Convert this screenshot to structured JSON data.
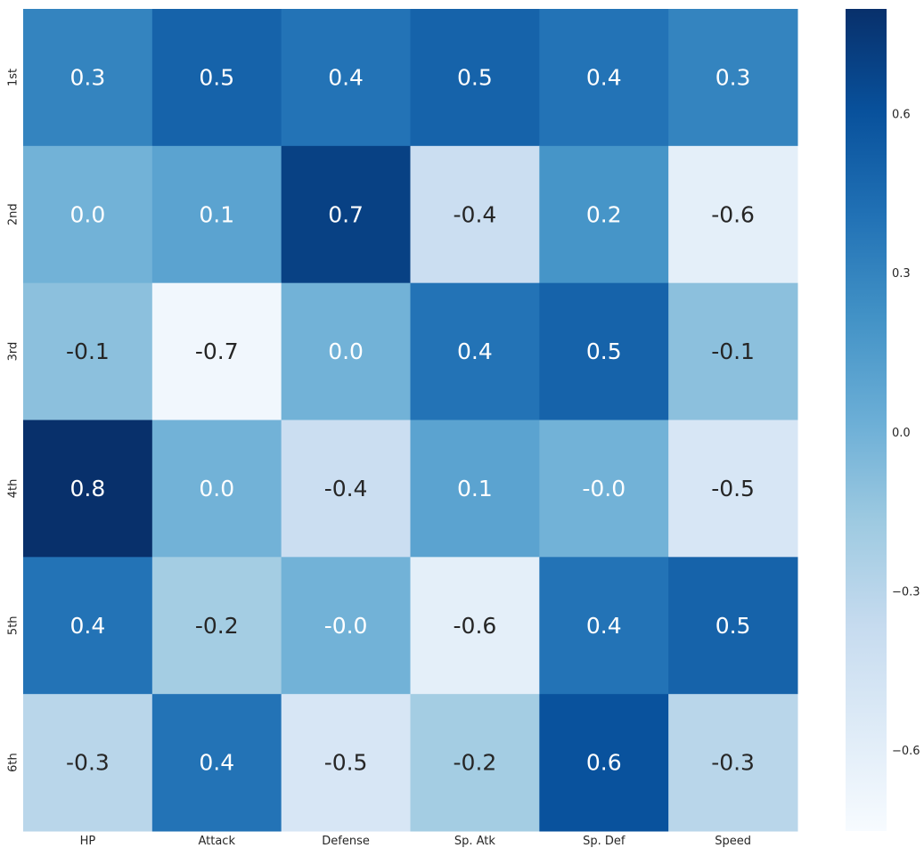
{
  "chart_data": {
    "type": "heatmap",
    "title": "",
    "xlabel": "",
    "ylabel": "",
    "x_categories": [
      "HP",
      "Attack",
      "Defense",
      "Sp. Atk",
      "Sp. Def",
      "Speed"
    ],
    "y_categories": [
      "1st",
      "2nd",
      "3rd",
      "4th",
      "5th",
      "6th"
    ],
    "values": [
      [
        0.3,
        0.5,
        0.4,
        0.5,
        0.4,
        0.3
      ],
      [
        0.0,
        0.1,
        0.7,
        -0.4,
        0.2,
        -0.6
      ],
      [
        -0.1,
        -0.7,
        0.0,
        0.4,
        0.5,
        -0.1
      ],
      [
        0.8,
        0.0,
        -0.4,
        0.1,
        -0.0,
        -0.5
      ],
      [
        0.4,
        -0.2,
        -0.0,
        -0.6,
        0.4,
        0.5
      ],
      [
        -0.3,
        0.4,
        -0.5,
        -0.2,
        0.6,
        -0.3
      ]
    ],
    "value_labels": [
      [
        "0.3",
        "0.5",
        "0.4",
        "0.5",
        "0.4",
        "0.3"
      ],
      [
        "0.0",
        "0.1",
        "0.7",
        "-0.4",
        "0.2",
        "-0.6"
      ],
      [
        "-0.1",
        "-0.7",
        "0.0",
        "0.4",
        "0.5",
        "-0.1"
      ],
      [
        "0.8",
        "0.0",
        "-0.4",
        "0.1",
        "-0.0",
        "-0.5"
      ],
      [
        "0.4",
        "-0.2",
        "-0.0",
        "-0.6",
        "0.4",
        "0.5"
      ],
      [
        "-0.3",
        "0.4",
        "-0.5",
        "-0.2",
        "0.6",
        "-0.3"
      ]
    ],
    "colormap": "Blues",
    "color_range": [
      -0.75,
      0.8
    ],
    "colorbar": {
      "ticks": [
        0.6,
        0.3,
        0.0,
        -0.3,
        -0.6
      ],
      "tick_labels": [
        "0.6",
        "0.3",
        "0.0",
        "−0.3",
        "−0.6"
      ]
    },
    "annotation_colors": {
      "dark_text": "#262626",
      "light_text": "#ffffff"
    },
    "grid": false,
    "legend": "colorbar-right"
  }
}
